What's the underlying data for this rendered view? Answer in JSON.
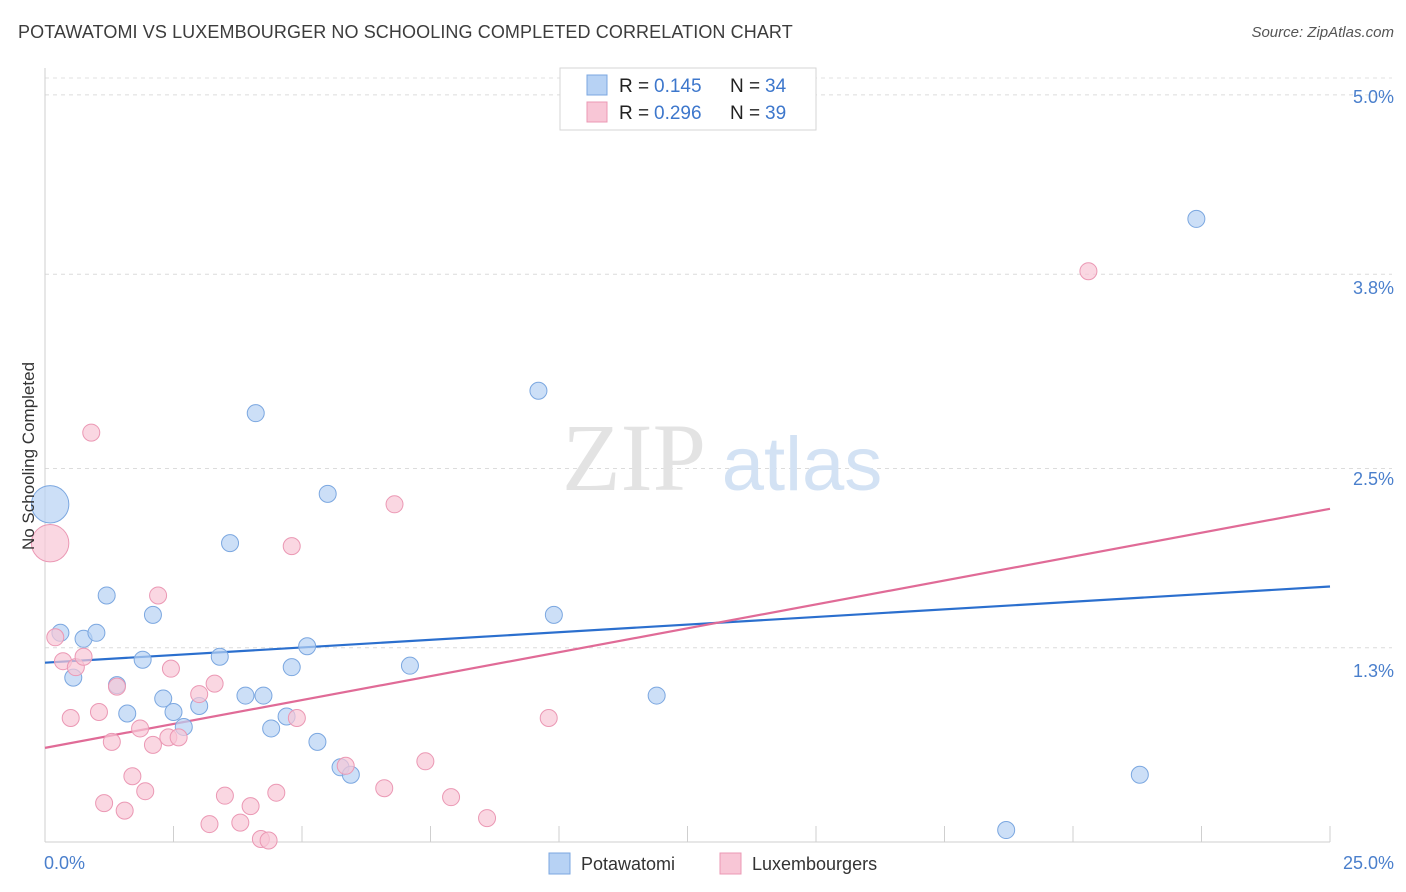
{
  "header": {
    "title": "POTAWATOMI VS LUXEMBOURGER NO SCHOOLING COMPLETED CORRELATION CHART",
    "source": "Source: ZipAtlas.com"
  },
  "watermark": {
    "part1": "ZIP",
    "part2": "atlas"
  },
  "colors": {
    "blue_fill": "#b7d2f4",
    "blue_stroke": "#7ba7e0",
    "blue_line": "#2b6fce",
    "pink_fill": "#f8c6d6",
    "pink_stroke": "#eb98b4",
    "pink_line": "#e06b97",
    "axis_label": "#4a7fcc"
  },
  "legend_top": [
    {
      "r_label": "R =",
      "r_value": "0.145",
      "n_label": "N =",
      "n_value": "34"
    },
    {
      "r_label": "R =",
      "r_value": "0.296",
      "n_label": "N =",
      "n_value": "39"
    }
  ],
  "chart_data": {
    "type": "scatter",
    "title": "POTAWATOMI VS LUXEMBOURGER NO SCHOOLING COMPLETED CORRELATION CHART",
    "xlabel": "",
    "ylabel": "No Schooling Completed",
    "xlim": [
      0,
      25
    ],
    "ylim": [
      0,
      5.2
    ],
    "x_tick_labels": [
      "0.0%",
      "25.0%"
    ],
    "y_ticks": [
      1.3,
      2.5,
      3.8,
      5.0
    ],
    "y_tick_labels": [
      "1.3%",
      "2.5%",
      "3.8%",
      "5.0%"
    ],
    "grid": true,
    "legend_position": "top-center",
    "series": [
      {
        "name": "Potawatomi",
        "color": "#b7d2f4",
        "trendline": {
          "x": [
            0,
            25
          ],
          "y": [
            1.2,
            1.71
          ]
        },
        "points": [
          {
            "x": 0.1,
            "y": 2.26,
            "size": 2.2
          },
          {
            "x": 0.3,
            "y": 1.4
          },
          {
            "x": 0.55,
            "y": 1.1
          },
          {
            "x": 0.75,
            "y": 1.36
          },
          {
            "x": 1.0,
            "y": 1.4
          },
          {
            "x": 1.2,
            "y": 1.65
          },
          {
            "x": 1.4,
            "y": 1.05
          },
          {
            "x": 1.6,
            "y": 0.86
          },
          {
            "x": 1.9,
            "y": 1.22
          },
          {
            "x": 2.1,
            "y": 1.52
          },
          {
            "x": 2.3,
            "y": 0.96
          },
          {
            "x": 2.5,
            "y": 0.87
          },
          {
            "x": 2.7,
            "y": 0.77
          },
          {
            "x": 3.0,
            "y": 0.91
          },
          {
            "x": 3.4,
            "y": 1.24
          },
          {
            "x": 3.6,
            "y": 2.0
          },
          {
            "x": 3.9,
            "y": 0.98
          },
          {
            "x": 4.1,
            "y": 2.87
          },
          {
            "x": 4.25,
            "y": 0.98
          },
          {
            "x": 4.4,
            "y": 0.76
          },
          {
            "x": 4.7,
            "y": 0.84
          },
          {
            "x": 4.8,
            "y": 1.17
          },
          {
            "x": 5.1,
            "y": 1.31
          },
          {
            "x": 5.3,
            "y": 0.67
          },
          {
            "x": 5.5,
            "y": 2.33
          },
          {
            "x": 5.75,
            "y": 0.5
          },
          {
            "x": 5.95,
            "y": 0.45
          },
          {
            "x": 7.1,
            "y": 1.18
          },
          {
            "x": 9.6,
            "y": 3.02
          },
          {
            "x": 9.9,
            "y": 1.52
          },
          {
            "x": 11.9,
            "y": 0.98
          },
          {
            "x": 18.7,
            "y": 0.08
          },
          {
            "x": 21.3,
            "y": 0.45
          },
          {
            "x": 22.4,
            "y": 4.17
          }
        ]
      },
      {
        "name": "Luxembourgers",
        "color": "#f8c6d6",
        "trendline": {
          "x": [
            0,
            25
          ],
          "y": [
            0.63,
            2.23
          ]
        },
        "points": [
          {
            "x": 0.1,
            "y": 2.0,
            "size": 2.2
          },
          {
            "x": 0.2,
            "y": 1.37
          },
          {
            "x": 0.35,
            "y": 1.21
          },
          {
            "x": 0.5,
            "y": 0.83
          },
          {
            "x": 0.6,
            "y": 1.17
          },
          {
            "x": 0.75,
            "y": 1.24
          },
          {
            "x": 0.9,
            "y": 2.74
          },
          {
            "x": 1.05,
            "y": 0.87
          },
          {
            "x": 1.15,
            "y": 0.26
          },
          {
            "x": 1.3,
            "y": 0.67
          },
          {
            "x": 1.4,
            "y": 1.04
          },
          {
            "x": 1.55,
            "y": 0.21
          },
          {
            "x": 1.7,
            "y": 0.44
          },
          {
            "x": 1.85,
            "y": 0.76
          },
          {
            "x": 1.95,
            "y": 0.34
          },
          {
            "x": 2.1,
            "y": 0.65
          },
          {
            "x": 2.2,
            "y": 1.65
          },
          {
            "x": 2.4,
            "y": 0.7
          },
          {
            "x": 2.45,
            "y": 1.16
          },
          {
            "x": 2.6,
            "y": 0.7
          },
          {
            "x": 3.0,
            "y": 0.99
          },
          {
            "x": 3.2,
            "y": 0.12
          },
          {
            "x": 3.3,
            "y": 1.06
          },
          {
            "x": 3.5,
            "y": 0.31
          },
          {
            "x": 3.8,
            "y": 0.13
          },
          {
            "x": 4.0,
            "y": 0.24
          },
          {
            "x": 4.2,
            "y": 0.02
          },
          {
            "x": 4.35,
            "y": 0.01
          },
          {
            "x": 4.5,
            "y": 0.33
          },
          {
            "x": 4.8,
            "y": 1.98
          },
          {
            "x": 4.9,
            "y": 0.83
          },
          {
            "x": 5.85,
            "y": 0.51
          },
          {
            "x": 6.6,
            "y": 0.36
          },
          {
            "x": 6.8,
            "y": 2.26
          },
          {
            "x": 7.4,
            "y": 0.54
          },
          {
            "x": 7.9,
            "y": 0.3
          },
          {
            "x": 8.6,
            "y": 0.16
          },
          {
            "x": 9.8,
            "y": 0.83
          },
          {
            "x": 20.3,
            "y": 3.82
          }
        ]
      }
    ]
  }
}
